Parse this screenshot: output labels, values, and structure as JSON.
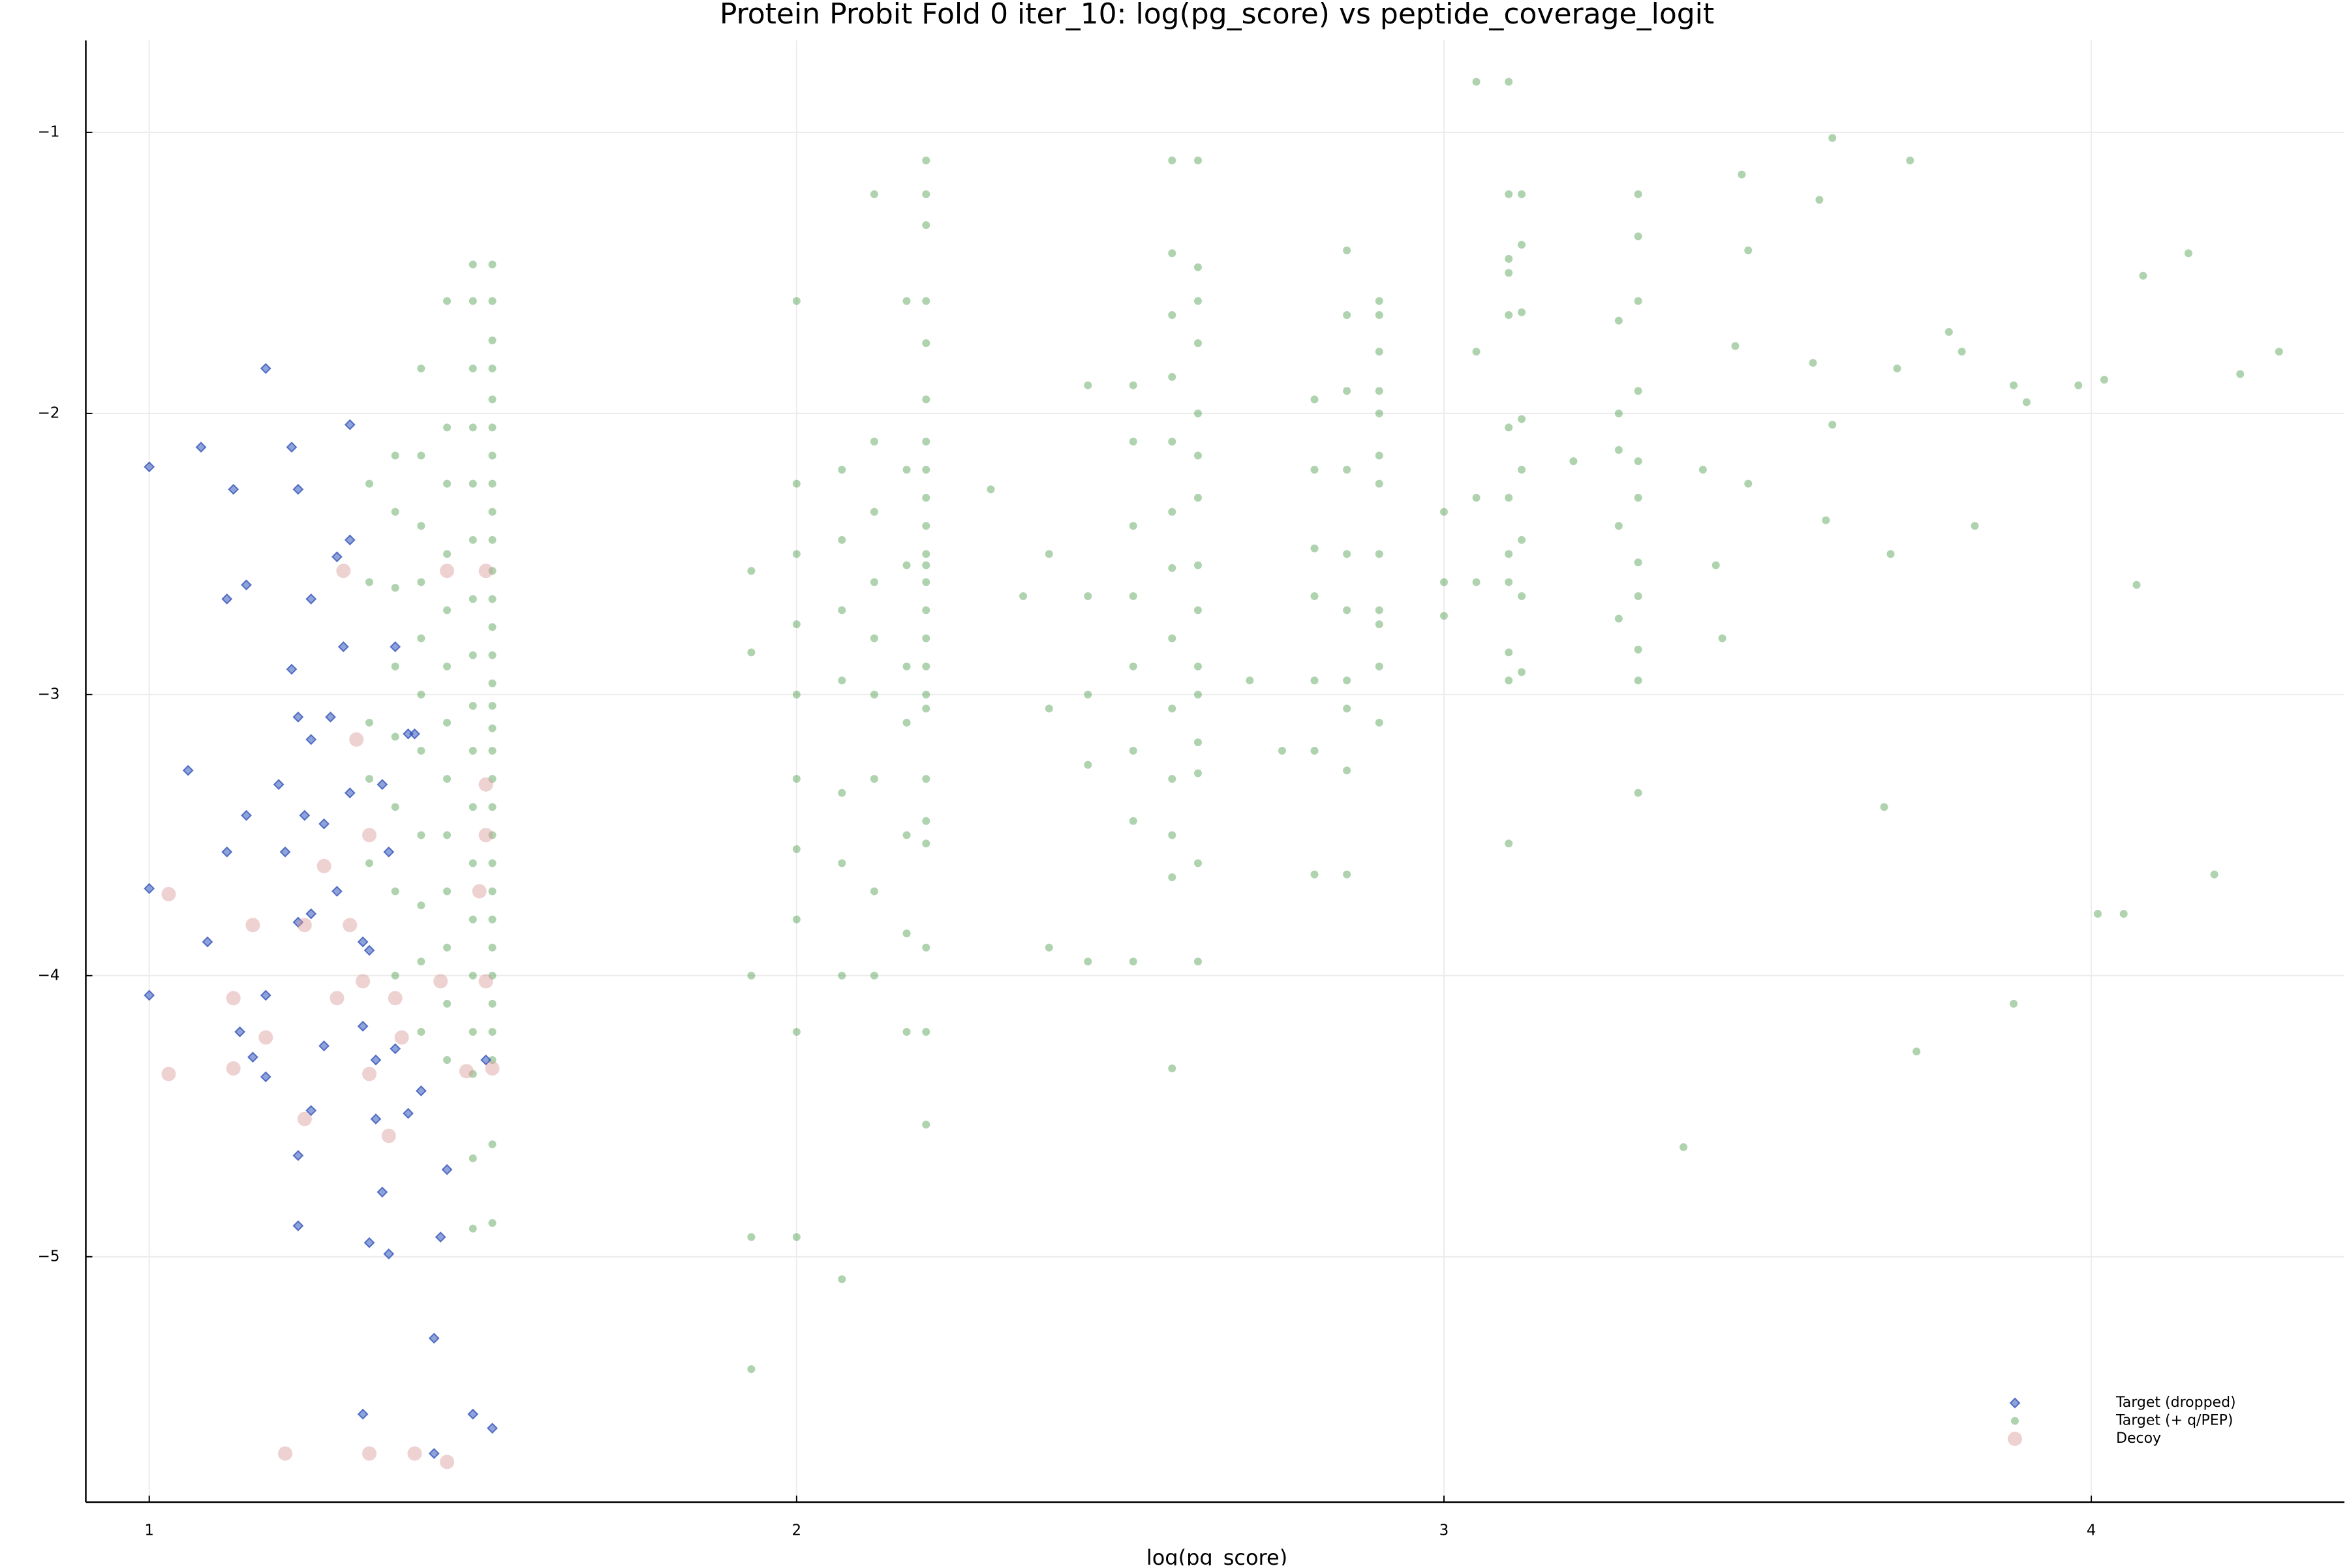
{
  "chart_data": {
    "type": "scatter",
    "title": "Protein Probit Fold 0 iter_10: log(pg_score) vs peptide_coverage_logit",
    "x_label": "log(pg_score)",
    "xlim": [
      0.902,
      4.391
    ],
    "ylim": [
      -5.873,
      -0.673
    ],
    "xticks": [
      1,
      2,
      3,
      4
    ],
    "yticks": [
      {
        "value": -5,
        "label": "−5"
      },
      {
        "value": -4,
        "label": "−4"
      },
      {
        "value": -3,
        "label": "−3"
      },
      {
        "value": -2,
        "label": "−2"
      },
      {
        "value": -1,
        "label": "−1"
      }
    ],
    "grid": true,
    "legend": "bottom right",
    "series": [
      {
        "name": "Target (dropped)",
        "color": "#3355bb",
        "marker": "diamond",
        "x": [
          1.0,
          1.08,
          1.18,
          1.22,
          1.31,
          1.13,
          1.23,
          1.15,
          1.12,
          1.25,
          1.31,
          1.29,
          1.3,
          1.22,
          1.38,
          1.23,
          1.28,
          1.4,
          1.41,
          1.06,
          1.25,
          1.2,
          1.15,
          1.24,
          1.27,
          1.31,
          1.36,
          1.12,
          1.21,
          1.37,
          1.0,
          1.09,
          1.23,
          1.25,
          1.29,
          1.33,
          1.34,
          1.0,
          1.18,
          1.14,
          1.16,
          1.18,
          1.27,
          1.33,
          1.35,
          1.38,
          1.23,
          1.25,
          1.35,
          1.4,
          1.42,
          1.46,
          1.36,
          1.23,
          1.34,
          1.37,
          1.45,
          1.44,
          1.33,
          1.5,
          1.53,
          1.44,
          1.52
        ],
        "values": [
          -2.19,
          -2.12,
          -1.84,
          -2.12,
          -2.04,
          -2.27,
          -2.27,
          -2.61,
          -2.66,
          -2.66,
          -2.45,
          -2.51,
          -2.83,
          -2.91,
          -2.83,
          -3.08,
          -3.08,
          -3.14,
          -3.14,
          -3.27,
          -3.16,
          -3.32,
          -3.43,
          -3.43,
          -3.46,
          -3.35,
          -3.32,
          -3.56,
          -3.56,
          -3.56,
          -3.69,
          -3.88,
          -3.81,
          -3.78,
          -3.7,
          -3.88,
          -3.91,
          -4.07,
          -4.07,
          -4.2,
          -4.29,
          -4.36,
          -4.25,
          -4.18,
          -4.3,
          -4.26,
          -4.64,
          -4.48,
          -4.51,
          -4.49,
          -4.41,
          -4.69,
          -4.77,
          -4.89,
          -4.95,
          -4.99,
          -4.93,
          -5.29,
          -5.56,
          -5.56,
          -5.61,
          -5.7,
          -4.3
        ]
      },
      {
        "name": "Target (+ q/PEP)",
        "color": "#2e8b2e",
        "marker": "circle",
        "x": [
          1.53,
          1.53,
          1.53,
          1.53,
          1.53,
          1.53,
          1.53,
          1.53,
          1.53,
          1.53,
          1.53,
          1.53,
          1.53,
          1.53,
          1.53,
          1.53,
          1.53,
          1.53,
          1.53,
          1.53,
          1.53,
          1.53,
          1.53,
          1.53,
          1.53,
          1.53,
          1.53,
          1.53,
          1.53,
          1.53,
          1.53,
          1.5,
          1.5,
          1.5,
          1.5,
          1.5,
          1.5,
          1.5,
          1.5,
          1.5,
          1.5,
          1.5,
          1.5,
          1.5,
          1.5,
          1.5,
          1.5,
          1.5,
          1.5,
          1.46,
          1.46,
          1.46,
          1.46,
          1.46,
          1.46,
          1.46,
          1.46,
          1.46,
          1.46,
          1.46,
          1.46,
          1.46,
          1.42,
          1.42,
          1.42,
          1.42,
          1.42,
          1.42,
          1.42,
          1.42,
          1.42,
          1.42,
          1.42,
          1.38,
          1.38,
          1.38,
          1.38,
          1.38,
          1.38,
          1.38,
          1.38,
          1.34,
          1.34,
          1.34,
          1.34,
          1.34,
          2.2,
          2.2,
          2.2,
          2.2,
          2.2,
          2.2,
          2.2,
          2.2,
          2.2,
          2.2,
          2.2,
          2.2,
          2.2,
          2.2,
          2.2,
          2.2,
          2.2,
          2.2,
          2.2,
          2.2,
          2.2,
          2.2,
          2.2,
          2.2,
          2.17,
          2.17,
          2.17,
          2.17,
          2.17,
          2.17,
          2.17,
          2.17,
          2.12,
          2.12,
          2.12,
          2.12,
          2.12,
          2.12,
          2.12,
          2.12,
          2.12,
          2.07,
          2.07,
          2.07,
          2.07,
          2.07,
          2.07,
          2.07,
          2.07,
          2.0,
          2.0,
          2.0,
          2.0,
          2.0,
          2.0,
          2.0,
          2.0,
          2.0,
          2.0,
          1.93,
          1.93,
          1.93,
          1.93,
          1.93,
          2.3,
          2.35,
          2.39,
          2.39,
          2.39,
          2.62,
          2.62,
          2.62,
          2.62,
          2.62,
          2.62,
          2.62,
          2.62,
          2.62,
          2.62,
          2.62,
          2.62,
          2.62,
          2.62,
          2.62,
          2.58,
          2.58,
          2.58,
          2.58,
          2.58,
          2.58,
          2.58,
          2.58,
          2.58,
          2.58,
          2.58,
          2.58,
          2.58,
          2.52,
          2.52,
          2.52,
          2.52,
          2.52,
          2.52,
          2.52,
          2.52,
          2.45,
          2.45,
          2.45,
          2.45,
          2.45,
          2.7,
          2.9,
          2.9,
          2.9,
          2.9,
          2.9,
          2.9,
          2.9,
          2.9,
          2.9,
          2.9,
          2.9,
          2.9,
          2.85,
          2.85,
          2.85,
          2.85,
          2.85,
          2.85,
          2.85,
          2.85,
          2.85,
          2.85,
          2.8,
          2.8,
          2.8,
          2.8,
          2.8,
          2.8,
          2.8,
          2.75,
          3.1,
          3.1,
          3.1,
          3.1,
          3.1,
          3.1,
          3.1,
          3.1,
          3.1,
          3.1,
          3.1,
          3.1,
          3.12,
          3.12,
          3.12,
          3.12,
          3.12,
          3.12,
          3.12,
          3.12,
          3.05,
          3.05,
          3.05,
          3.05,
          3.0,
          3.0,
          3.0,
          3.3,
          3.3,
          3.3,
          3.3,
          3.3,
          3.3,
          3.3,
          3.3,
          3.3,
          3.3,
          3.3,
          3.27,
          3.27,
          3.27,
          3.27,
          3.27,
          3.2,
          3.37,
          3.4,
          3.42,
          3.43,
          3.45,
          3.46,
          3.47,
          3.47,
          3.57,
          3.58,
          3.59,
          3.6,
          3.6,
          3.68,
          3.69,
          3.7,
          3.72,
          3.73,
          3.78,
          3.8,
          3.82,
          3.88,
          3.88,
          3.9,
          3.98,
          4.02,
          4.01,
          4.05,
          4.07,
          4.08,
          4.15,
          4.19,
          4.23,
          4.29
        ],
        "values": [
          -1.47,
          -1.6,
          -1.74,
          -1.84,
          -1.95,
          -2.05,
          -2.15,
          -2.25,
          -2.35,
          -2.45,
          -2.56,
          -2.66,
          -2.76,
          -2.86,
          -2.96,
          -3.04,
          -3.12,
          -3.2,
          -3.3,
          -3.4,
          -3.5,
          -3.6,
          -3.7,
          -3.8,
          -3.9,
          -4.0,
          -4.1,
          -4.2,
          -4.3,
          -4.6,
          -4.88,
          -1.47,
          -1.6,
          -1.84,
          -2.05,
          -2.25,
          -2.45,
          -2.66,
          -2.86,
          -3.04,
          -3.2,
          -3.4,
          -3.6,
          -3.8,
          -4.0,
          -4.2,
          -4.35,
          -4.65,
          -4.9,
          -1.6,
          -2.05,
          -2.25,
          -2.5,
          -2.7,
          -2.9,
          -3.1,
          -3.3,
          -3.5,
          -3.7,
          -3.9,
          -4.1,
          -4.3,
          -1.84,
          -2.15,
          -2.4,
          -2.6,
          -2.8,
          -3.0,
          -3.2,
          -3.5,
          -3.75,
          -3.95,
          -4.2,
          -2.15,
          -2.35,
          -2.62,
          -2.9,
          -3.15,
          -3.4,
          -3.7,
          -4.0,
          -2.25,
          -2.6,
          -3.1,
          -3.3,
          -3.6,
          -1.1,
          -1.22,
          -1.33,
          -1.6,
          -1.75,
          -1.95,
          -2.1,
          -2.2,
          -2.3,
          -2.4,
          -2.5,
          -2.54,
          -2.6,
          -2.7,
          -2.8,
          -2.9,
          -3.0,
          -3.05,
          -3.3,
          -3.45,
          -3.53,
          -3.9,
          -4.2,
          -4.53,
          -1.6,
          -2.2,
          -2.54,
          -2.9,
          -3.1,
          -3.5,
          -3.85,
          -4.2,
          -1.22,
          -2.1,
          -2.35,
          -2.6,
          -2.8,
          -3.0,
          -3.3,
          -3.7,
          -4.0,
          -2.2,
          -2.45,
          -2.7,
          -2.95,
          -3.35,
          -3.6,
          -4.0,
          -5.08,
          -1.6,
          -2.25,
          -2.5,
          -2.75,
          -3.0,
          -3.3,
          -3.55,
          -3.8,
          -4.2,
          -4.93,
          -2.56,
          -2.85,
          -4.0,
          -4.93,
          -5.4,
          -2.27,
          -2.65,
          -2.5,
          -3.05,
          -3.9,
          -1.1,
          -1.48,
          -1.6,
          -1.75,
          -2.0,
          -2.15,
          -2.3,
          -2.54,
          -2.7,
          -2.9,
          -3.0,
          -3.17,
          -3.28,
          -3.6,
          -3.95,
          -1.1,
          -1.43,
          -1.65,
          -1.87,
          -2.1,
          -2.35,
          -2.55,
          -2.8,
          -3.05,
          -3.3,
          -3.5,
          -3.65,
          -4.33,
          -1.9,
          -2.1,
          -2.4,
          -2.65,
          -2.9,
          -3.2,
          -3.45,
          -3.95,
          -1.9,
          -2.65,
          -3.0,
          -3.25,
          -3.95,
          -2.95,
          -1.6,
          -1.65,
          -1.78,
          -1.92,
          -2.0,
          -2.15,
          -2.25,
          -2.5,
          -2.7,
          -2.75,
          -2.9,
          -3.1,
          -1.42,
          -1.65,
          -1.92,
          -2.2,
          -2.5,
          -2.7,
          -2.95,
          -3.05,
          -3.27,
          -3.64,
          -1.95,
          -2.2,
          -2.48,
          -2.65,
          -2.95,
          -3.2,
          -3.64,
          -3.2,
          -0.82,
          -1.22,
          -1.45,
          -1.5,
          -1.65,
          -2.05,
          -2.3,
          -2.5,
          -2.6,
          -2.85,
          -2.95,
          -3.53,
          -1.22,
          -1.4,
          -1.64,
          -2.02,
          -2.2,
          -2.45,
          -2.65,
          -2.92,
          -0.82,
          -1.78,
          -2.3,
          -2.6,
          -2.35,
          -2.6,
          -2.72,
          -1.22,
          -1.37,
          -1.6,
          -1.92,
          -2.17,
          -2.3,
          -2.53,
          -2.65,
          -2.84,
          -2.95,
          -3.35,
          -1.67,
          -2.0,
          -2.13,
          -2.4,
          -2.73,
          -2.17,
          -4.61,
          -2.2,
          -2.54,
          -2.8,
          -1.76,
          -1.15,
          -2.25,
          -1.42,
          -1.82,
          -1.24,
          -2.38,
          -1.02,
          -2.04,
          -3.4,
          -2.5,
          -1.84,
          -1.1,
          -4.27,
          -1.71,
          -1.78,
          -2.4,
          -1.9,
          -4.1,
          -1.96,
          -1.9,
          -1.88,
          -3.78,
          -3.78,
          -2.61,
          -1.51,
          -1.43,
          -3.64,
          -1.86,
          -1.78
        ]
      },
      {
        "name": "Decoy",
        "color": "#d99a9a",
        "marker": "circle-large",
        "x": [
          1.3,
          1.46,
          1.32,
          1.34,
          1.27,
          1.03,
          1.16,
          1.24,
          1.31,
          1.51,
          1.33,
          1.45,
          1.52,
          1.13,
          1.29,
          1.38,
          1.18,
          1.39,
          1.03,
          1.13,
          1.34,
          1.49,
          1.53,
          1.24,
          1.37,
          1.52,
          1.52,
          1.52,
          1.21,
          1.34,
          1.41,
          1.46
        ],
        "values": [
          -2.56,
          -2.56,
          -3.16,
          -3.5,
          -3.61,
          -3.71,
          -3.82,
          -3.82,
          -3.82,
          -3.7,
          -4.02,
          -4.02,
          -4.02,
          -4.08,
          -4.08,
          -4.08,
          -4.22,
          -4.22,
          -4.35,
          -4.33,
          -4.35,
          -4.34,
          -4.33,
          -4.51,
          -4.57,
          -2.56,
          -3.32,
          -3.5,
          -5.7,
          -5.7,
          -5.7,
          -5.73
        ]
      }
    ]
  }
}
